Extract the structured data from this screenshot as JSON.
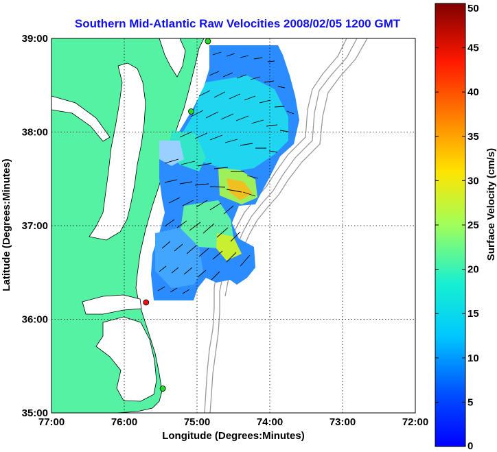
{
  "chart_data": {
    "type": "map",
    "title": "Southern Mid-Atlantic Raw Velocities 2008/02/05 1200 GMT",
    "xlabel": "Longitude (Degrees:Minutes)",
    "ylabel": "Latitude (Degrees:Minutes)",
    "xlim": [
      -77,
      -72
    ],
    "ylim": [
      35,
      39
    ],
    "x_ticks": [
      "77:00",
      "76:00",
      "75:00",
      "74:00",
      "73:00",
      "72:00"
    ],
    "y_ticks": [
      "35:00",
      "36:00",
      "37:00",
      "38:00",
      "39:00"
    ],
    "grid": true,
    "colorbar": {
      "label": "Surface Velocity (cm/s)",
      "min": 0,
      "max": 50,
      "ticks": [
        "0",
        "5",
        "10",
        "15",
        "20",
        "25",
        "30",
        "35",
        "40",
        "45",
        "50"
      ]
    },
    "sites": [
      {
        "lon": -74.85,
        "lat": 38.97,
        "color": "#22dd22"
      },
      {
        "lon": -75.08,
        "lat": 38.22,
        "color": "#22dd22"
      },
      {
        "lon": -75.7,
        "lat": 36.18,
        "color": "#ee1111"
      },
      {
        "lon": -75.47,
        "lat": 35.26,
        "color": "#22dd22"
      }
    ]
  },
  "colors": {
    "land": "#55f2a4",
    "title": "#1010ee",
    "contour": "#999999"
  }
}
